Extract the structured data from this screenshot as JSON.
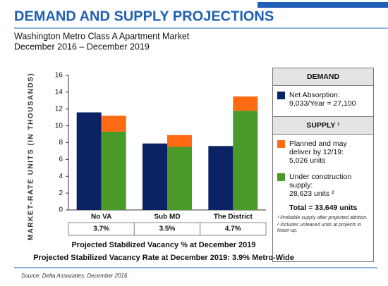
{
  "chart_data": {
    "type": "bar",
    "title": "DEMAND AND SUPPLY PROJECTIONS",
    "subtitle": [
      "Washington Metro Class A Apartment Market",
      "December 2016 – December 2019"
    ],
    "y_label": "MARKET-RATE UNITS (IN THOUSANDS)",
    "categories": [
      "No VA",
      "Sub MD",
      "The District"
    ],
    "ylim": [
      0,
      16
    ],
    "yticks": [
      0,
      2,
      4,
      6,
      8,
      10,
      12,
      14,
      16
    ],
    "series": [
      {
        "name": "Net Absorption:",
        "detail": "9,033/Year = 27,100",
        "color": "#0b2265",
        "legend_group": 0,
        "values": [
          11.6,
          7.9,
          7.6
        ]
      },
      {
        "name": "Planned and may deliver by 12/19:",
        "detail": "5,026 units",
        "color": "#ff6a13",
        "legend_group": 1,
        "stack": "supply",
        "values": [
          1.9,
          1.4,
          1.7
        ]
      },
      {
        "name": "Under construction supply:",
        "detail": "28,623 units ²",
        "color": "#4a9a2a",
        "legend_group": 1,
        "stack": "supply",
        "values": [
          9.3,
          7.5,
          11.8
        ]
      }
    ],
    "legend_groups": [
      "DEMAND",
      "SUPPLY ¹"
    ],
    "total": "Total = 33,649 units",
    "footnotes": [
      "¹ Probable supply after projected attrition.",
      "² Includes unleased units at projects in lease-up."
    ],
    "vacancy": [
      "3.7%",
      "3.5%",
      "4.7%"
    ],
    "vacancy_caption": "Projected Stabilized Vacancy % at December 2019",
    "metro_note": "Projected Stabilized Vacancy Rate at December 2019:  3.9% Metro-Wide",
    "source": "Source: Delta Associates, December 2016."
  }
}
